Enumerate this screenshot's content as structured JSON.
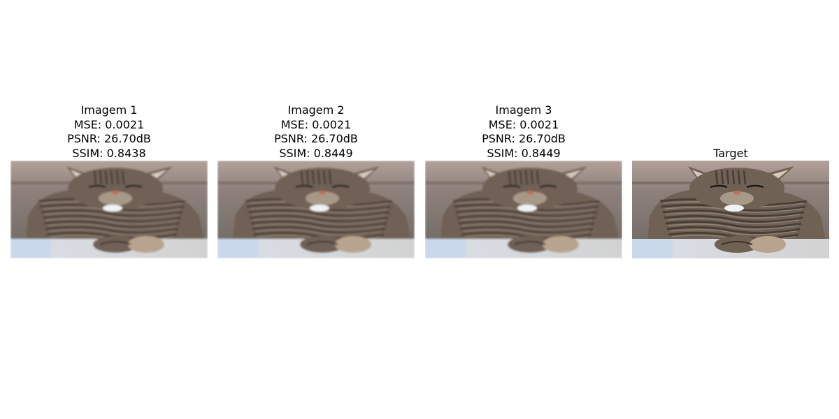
{
  "panels": [
    {
      "title": "Imagem 1",
      "mse": "MSE: 0.0021",
      "psnr": "PSNR: 26.70dB",
      "ssim": "SSIM: 0.8438",
      "blur": 1.3
    },
    {
      "title": "Imagem 2",
      "mse": "MSE: 0.0021",
      "psnr": "PSNR: 26.70dB",
      "ssim": "SSIM: 0.8449",
      "blur": 1.2
    },
    {
      "title": "Imagem 3",
      "mse": "MSE: 0.0021",
      "psnr": "PSNR: 26.70dB",
      "ssim": "SSIM: 0.8449",
      "blur": 1.2
    },
    {
      "title": "Target",
      "blur": 0
    }
  ],
  "colors": {
    "wall": "#9e8f89",
    "fur_dark": "#3b342d",
    "fur_mid": "#6f6154",
    "fur_light": "#a79988",
    "box": "#d9dce3",
    "box_side": "#c9d8ea",
    "chest": "#f2f2f2",
    "nose": "#c07060"
  }
}
